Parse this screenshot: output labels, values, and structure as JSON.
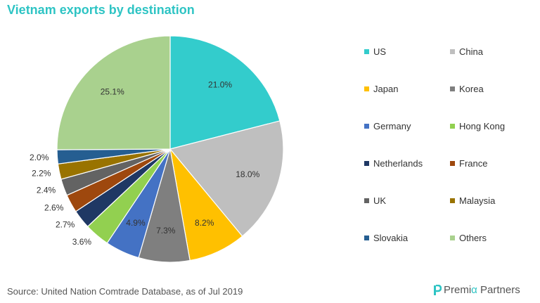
{
  "title": "Vietnam exports by destination",
  "source": "Source: United Nation Comtrade Database, as of Jul 2019",
  "logo": {
    "part1": "Premi",
    "alpha": "α",
    "part2": " Partners"
  },
  "colors": {
    "title": "#2ec4c4"
  },
  "chart_data": {
    "type": "pie",
    "title": "Vietnam exports by destination",
    "legend_position": "right",
    "start_angle_deg": 0,
    "direction": "clockwise",
    "slices": [
      {
        "name": "US",
        "value": 21.0,
        "label": "21.0%",
        "color": "#33cccc"
      },
      {
        "name": "China",
        "value": 18.0,
        "label": "18.0%",
        "color": "#bfbfbf"
      },
      {
        "name": "Japan",
        "value": 8.2,
        "label": "8.2%",
        "color": "#ffc000"
      },
      {
        "name": "Korea",
        "value": 7.3,
        "label": "7.3%",
        "color": "#7f7f7f"
      },
      {
        "name": "Germany",
        "value": 4.9,
        "label": "4.9%",
        "color": "#4472c4"
      },
      {
        "name": "Hong Kong",
        "value": 3.6,
        "label": "3.6%",
        "color": "#92d050"
      },
      {
        "name": "Netherlands",
        "value": 2.7,
        "label": "2.7%",
        "color": "#1f3864"
      },
      {
        "name": "France",
        "value": 2.6,
        "label": "2.6%",
        "color": "#9e480e"
      },
      {
        "name": "UK",
        "value": 2.4,
        "label": "2.4%",
        "color": "#636363"
      },
      {
        "name": "Malaysia",
        "value": 2.2,
        "label": "2.2%",
        "color": "#997300"
      },
      {
        "name": "Slovakia",
        "value": 2.0,
        "label": "2.0%",
        "color": "#255e91"
      },
      {
        "name": "Others",
        "value": 25.1,
        "label": "25.1%",
        "color": "#a9d18e"
      }
    ]
  }
}
